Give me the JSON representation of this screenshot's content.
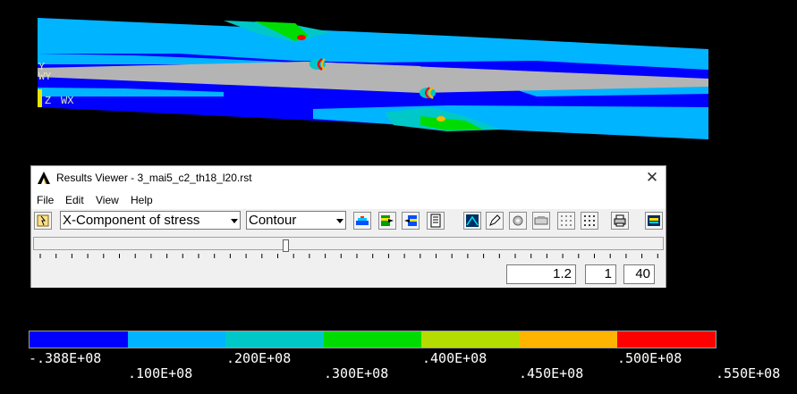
{
  "plot": {
    "axis_labels": [
      "Y",
      "WY",
      "Z",
      "WX"
    ],
    "colors": [
      "#0000ff",
      "#00b4ff",
      "#00c8c8",
      "#00dc00",
      "#b4dc00",
      "#ffb400",
      "#ff0000"
    ],
    "band_color": "#b4b4b4"
  },
  "viewer": {
    "title": "Results Viewer -  3_mai5_c2_th18_l20.rst",
    "menu": [
      "File",
      "Edit",
      "View",
      "Help"
    ],
    "result_item": "X-Component of stress",
    "display_type": "Contour",
    "slider_fraction": 0.4,
    "fields": {
      "substep": "1.2",
      "set": "1",
      "total": "40"
    }
  },
  "legend": {
    "colors": [
      "#0000ff",
      "#00b4ff",
      "#00c8c8",
      "#00dc00",
      "#b4dc00",
      "#ffb400",
      "#ff0000"
    ],
    "top_labels": [
      "-.388E+08",
      ".200E+08",
      ".400E+08",
      ".500E+08"
    ],
    "bottom_labels": [
      ".100E+08",
      ".300E+08",
      ".450E+08",
      ".550E+08"
    ]
  }
}
